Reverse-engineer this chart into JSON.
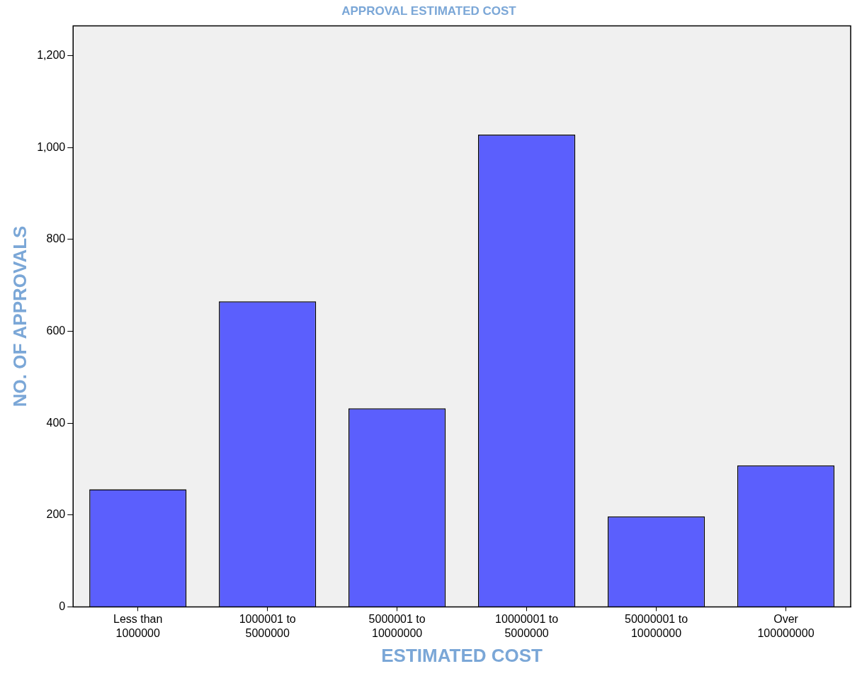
{
  "chart_data": {
    "type": "bar",
    "title": "APPROVAL ESTIMATED COST",
    "xlabel": "ESTIMATED COST",
    "ylabel": "NO. OF APPROVALS",
    "categories": [
      "Less than 1000000",
      "1000001 to 5000000",
      "5000001 to 10000000",
      "10000001 to 5000000",
      "50000001 to 10000000",
      "Over 100000000"
    ],
    "values": [
      256,
      665,
      432,
      1028,
      197,
      308
    ],
    "color": "#5b5ffd",
    "ylim": [
      0,
      1265
    ],
    "yticks": [
      0,
      {
        "value": 200,
        "label": "200"
      },
      {
        "value": 400,
        "label": "400"
      },
      {
        "value": 600,
        "label": "600"
      },
      {
        "value": 800,
        "label": "800"
      },
      {
        "value": 1000,
        "label": "1,000"
      },
      {
        "value": 1200,
        "label": "1,200"
      }
    ],
    "grid": false
  }
}
